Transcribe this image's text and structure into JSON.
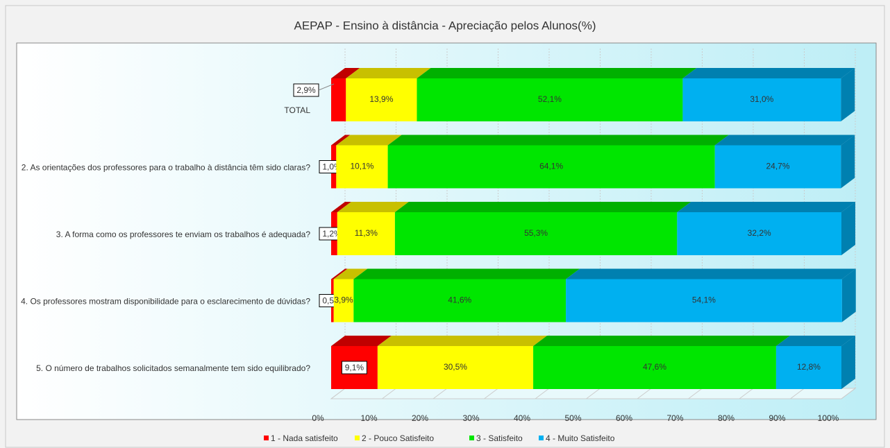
{
  "chart_data": {
    "type": "bar",
    "orientation": "horizontal",
    "stacked": true,
    "title": "AEPAP  - Ensino à distância - Apreciação  pelos Alunos(%)",
    "categories": [
      "TOTAL",
      "2. As orientações dos professores para o trabalho à distância têm sido claras?",
      "3. A forma como os professores te enviam os trabalhos é adequada?",
      "4. Os professores mostram disponibilidade para o esclarecimento de dúvidas?",
      "5. O número de trabalhos solicitados semanalmente tem sido equilibrado?"
    ],
    "series": [
      {
        "name": "1 - Nada satisfeito",
        "color": "#ff0000",
        "top_color": "#c00000",
        "values": [
          2.9,
          1.0,
          1.2,
          0.5,
          9.1
        ],
        "value_labels": [
          "2,9%",
          "1,0%",
          "1,2%",
          "0,5%",
          "9,1%"
        ]
      },
      {
        "name": "2 - Pouco Satisfeito",
        "color": "#ffff00",
        "top_color": "#c8c000",
        "values": [
          13.9,
          10.1,
          11.3,
          3.9,
          30.5
        ],
        "value_labels": [
          "13,9%",
          "10,1%",
          "11,3%",
          "3,9%",
          "30,5%"
        ]
      },
      {
        "name": "3 - Satisfeito",
        "color": "#00e600",
        "top_color": "#00b000",
        "values": [
          52.1,
          64.1,
          55.3,
          41.6,
          47.6
        ],
        "value_labels": [
          "52,1%",
          "64,1%",
          "55,3%",
          "41,6%",
          "47,6%"
        ]
      },
      {
        "name": "4 - Muito Satisfeito",
        "color": "#00b0f0",
        "top_color": "#0080b0",
        "values": [
          31.0,
          24.7,
          32.2,
          54.1,
          12.8
        ],
        "value_labels": [
          "31,0%",
          "24,7%",
          "32,2%",
          "54,1%",
          "12,8%"
        ]
      }
    ],
    "xlim": [
      0,
      100
    ],
    "xticks": [
      {
        "value": 0,
        "label": "0%"
      },
      {
        "value": 10,
        "label": "10%"
      },
      {
        "value": 20,
        "label": "20%"
      },
      {
        "value": 30,
        "label": "30%"
      },
      {
        "value": 40,
        "label": "40%"
      },
      {
        "value": 50,
        "label": "50%"
      },
      {
        "value": 60,
        "label": "60%"
      },
      {
        "value": 70,
        "label": "70%"
      },
      {
        "value": 80,
        "label": "80%"
      },
      {
        "value": 90,
        "label": "90%"
      },
      {
        "value": 100,
        "label": "100%"
      }
    ],
    "grid": true,
    "legend": "bottom"
  }
}
